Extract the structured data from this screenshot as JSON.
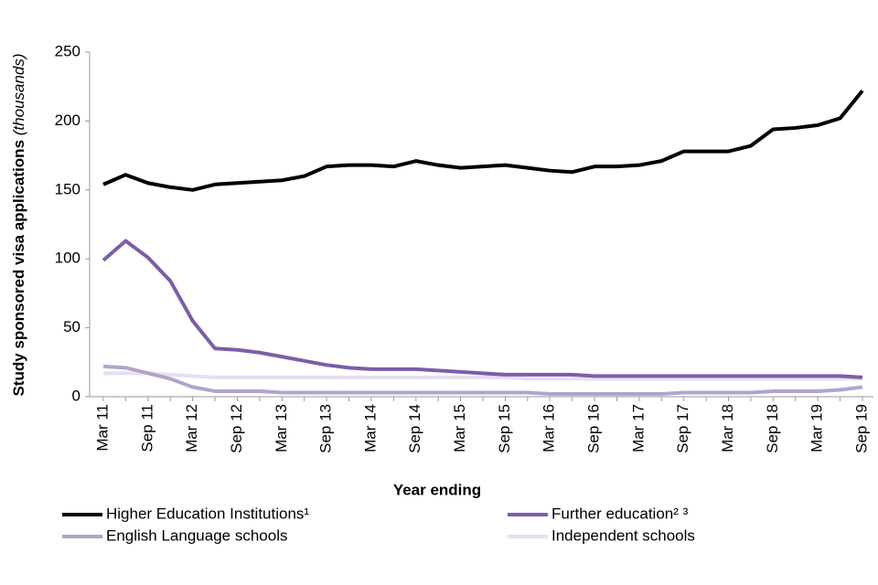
{
  "chart_data": {
    "type": "line",
    "y_label": "Study sponsored visa applications",
    "y_label_unit": "(thousands)",
    "x_label": "Year ending",
    "categories": [
      "Mar 11",
      null,
      "Sep 11",
      null,
      "Mar 12",
      null,
      "Sep 12",
      null,
      "Mar 13",
      null,
      "Sep 13",
      null,
      "Mar 14",
      null,
      "Sep 14",
      null,
      "Mar 15",
      null,
      "Sep 15",
      null,
      "Mar 16",
      null,
      "Sep 16",
      null,
      "Mar 17",
      null,
      "Sep 17",
      null,
      "Mar 18",
      null,
      "Sep 18",
      null,
      "Mar 19",
      null,
      "Sep 19"
    ],
    "series": [
      {
        "name": "Higher Education Institutions¹",
        "color": "#000000",
        "values": [
          154,
          161,
          155,
          152,
          150,
          154,
          155,
          156,
          157,
          160,
          167,
          168,
          168,
          167,
          171,
          168,
          166,
          167,
          168,
          166,
          164,
          163,
          167,
          167,
          168,
          171,
          178,
          178,
          178,
          182,
          194,
          195,
          197,
          202,
          222
        ]
      },
      {
        "name": "Further education² ³",
        "color": "#7b5ea7",
        "values": [
          99,
          113,
          101,
          84,
          55,
          35,
          34,
          32,
          29,
          26,
          23,
          21,
          20,
          20,
          20,
          19,
          18,
          17,
          16,
          16,
          16,
          16,
          15,
          15,
          15,
          15,
          15,
          15,
          15,
          15,
          15,
          15,
          15,
          15,
          14
        ]
      },
      {
        "name": "English Language schools",
        "color": "#b3a3cc",
        "values": [
          22,
          21,
          17,
          13,
          7,
          4,
          4,
          4,
          3,
          3,
          3,
          3,
          3,
          3,
          3,
          3,
          3,
          3,
          3,
          3,
          2,
          2,
          2,
          2,
          2,
          2,
          3,
          3,
          3,
          3,
          4,
          4,
          4,
          5,
          7
        ]
      },
      {
        "name": "Independent schools",
        "color": "#e6dff0",
        "values": [
          17,
          17,
          17,
          16,
          15,
          14,
          14,
          14,
          14,
          14,
          14,
          14,
          14,
          14,
          14,
          14,
          14,
          14,
          14,
          13,
          13,
          13,
          13,
          13,
          13,
          13,
          13,
          13,
          13,
          13,
          13,
          13,
          13,
          13,
          13
        ]
      }
    ],
    "ylim": [
      0,
      250
    ],
    "yticks": [
      0,
      50,
      100,
      150,
      200,
      250
    ]
  }
}
